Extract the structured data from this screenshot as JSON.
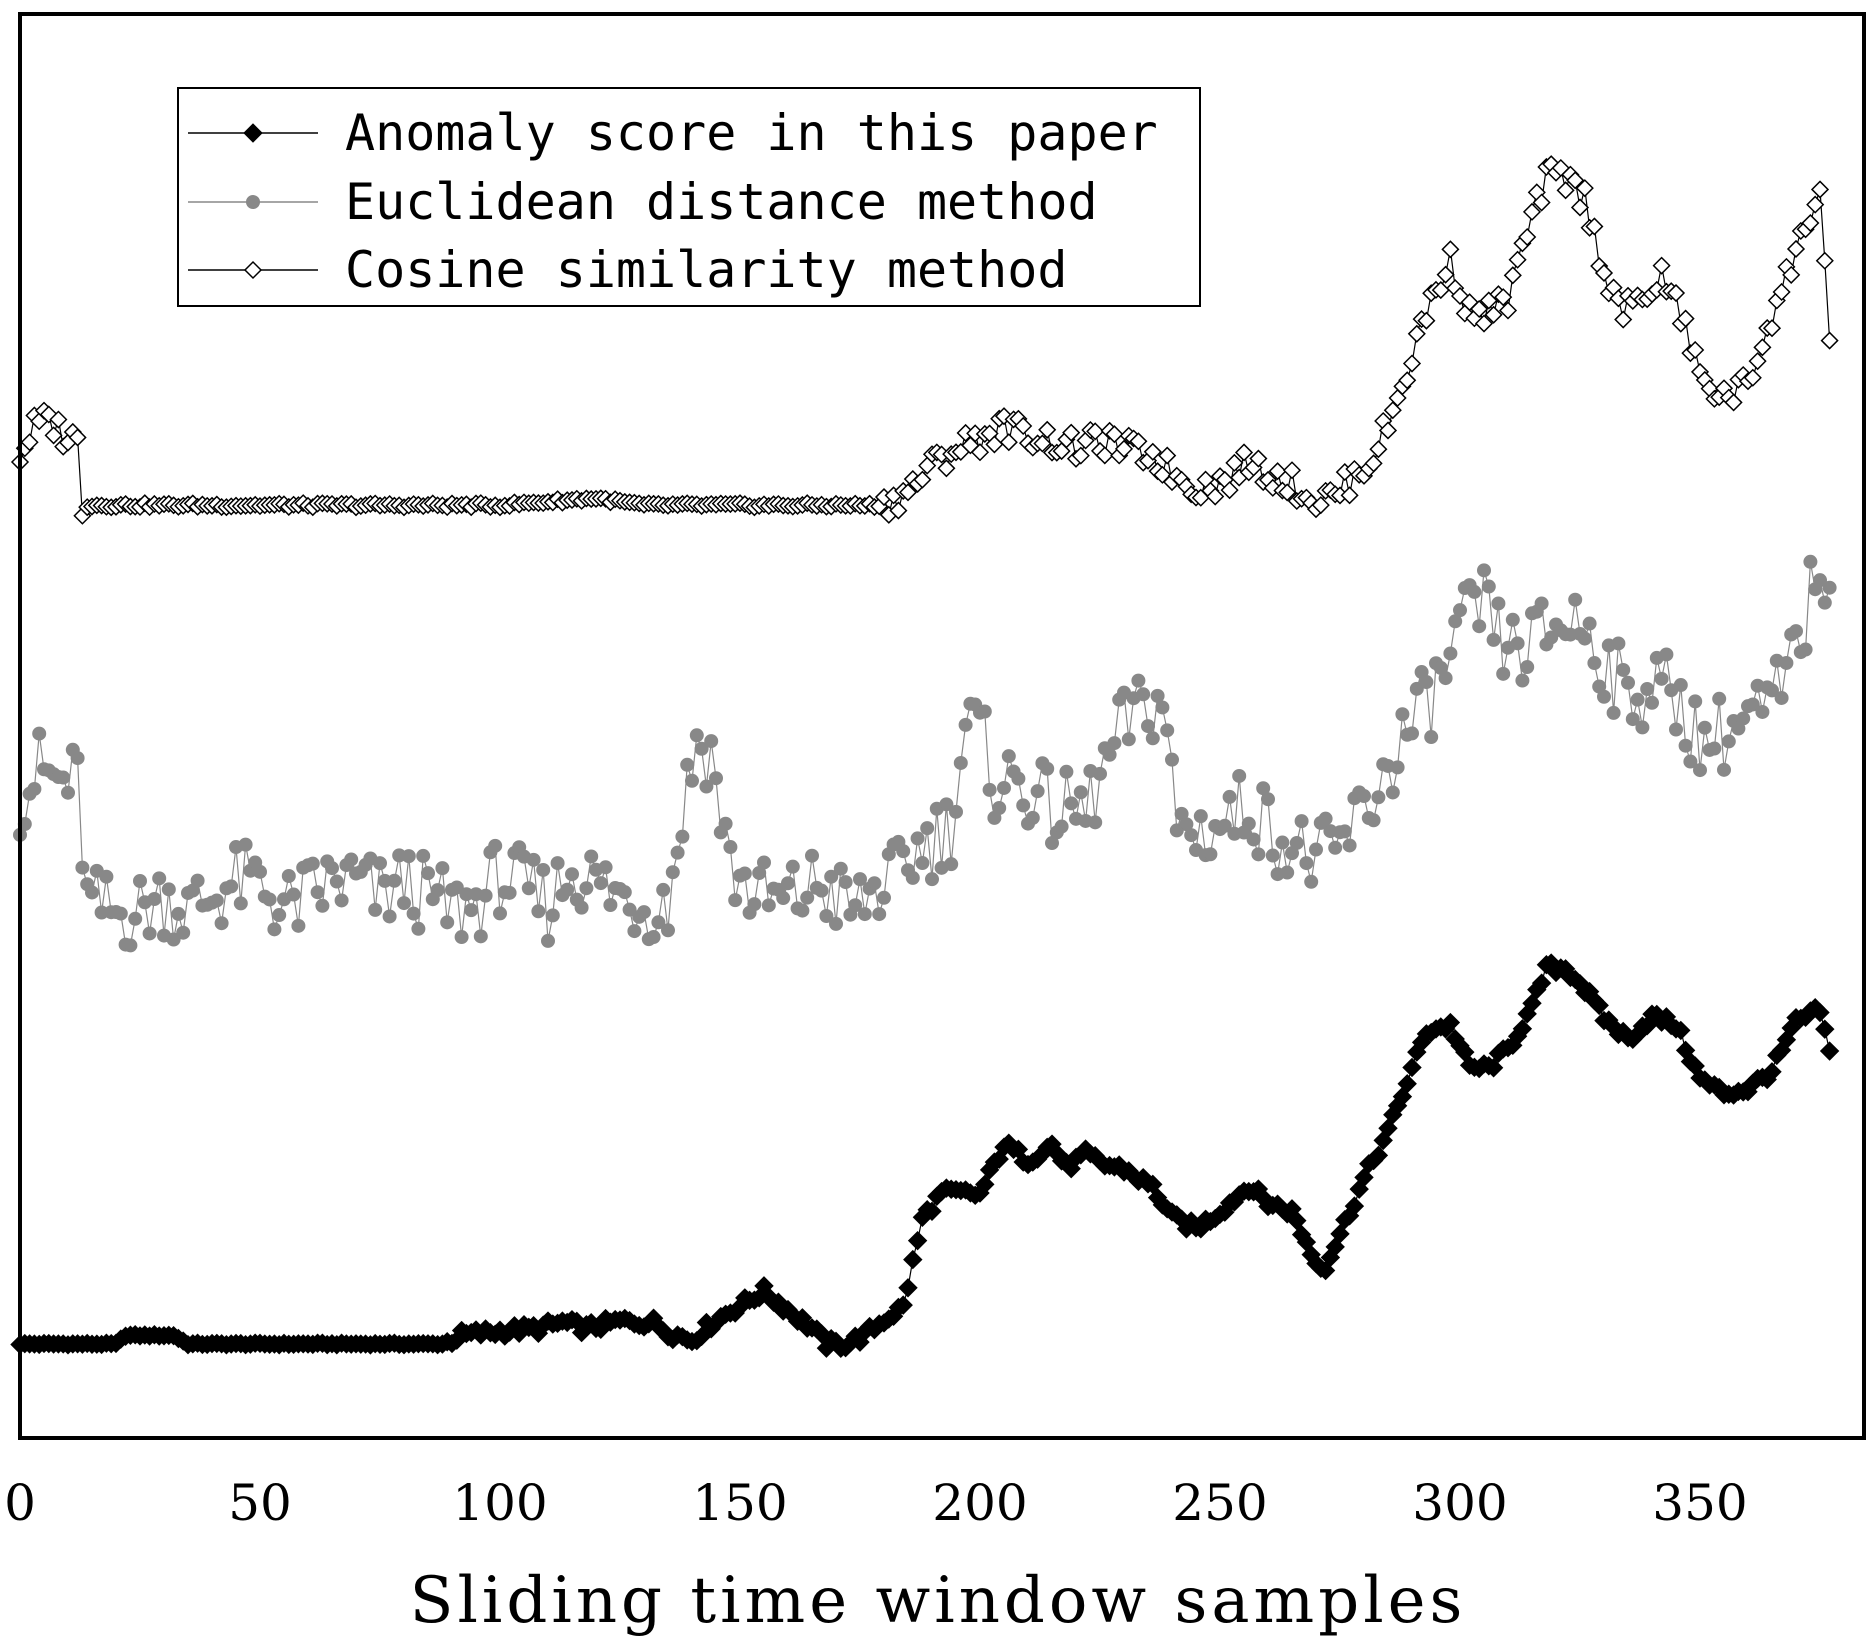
{
  "chart_data": {
    "type": "line",
    "title": "",
    "xlabel": "Sliding time window samples",
    "ylabel": "",
    "xlim": [
      0,
      380
    ],
    "ylim": [
      0,
      1
    ],
    "x_ticks": [
      0,
      50,
      100,
      150,
      200,
      250,
      300,
      350
    ],
    "y_ticks_shown": false,
    "grid": false,
    "legend_position": "top-left",
    "colors": {
      "frame": "#000000",
      "anomaly": "#000000",
      "euclidean": "#888888",
      "cosine": "#000000",
      "background": "#ffffff"
    },
    "series": [
      {
        "name": "Anomaly score in this paper",
        "marker": "filled-diamond",
        "knots": [
          [
            0,
            0.066
          ],
          [
            20,
            0.066
          ],
          [
            22,
            0.072
          ],
          [
            32,
            0.072
          ],
          [
            35,
            0.066
          ],
          [
            88,
            0.066
          ],
          [
            92,
            0.072
          ],
          [
            100,
            0.075
          ],
          [
            108,
            0.077
          ],
          [
            113,
            0.081
          ],
          [
            118,
            0.077
          ],
          [
            125,
            0.082
          ],
          [
            132,
            0.081
          ],
          [
            136,
            0.073
          ],
          [
            140,
            0.069
          ],
          [
            145,
            0.083
          ],
          [
            150,
            0.093
          ],
          [
            155,
            0.103
          ],
          [
            160,
            0.09
          ],
          [
            165,
            0.077
          ],
          [
            168,
            0.066
          ],
          [
            172,
            0.066
          ],
          [
            176,
            0.072
          ],
          [
            180,
            0.083
          ],
          [
            184,
            0.092
          ],
          [
            188,
            0.154
          ],
          [
            192,
            0.172
          ],
          [
            196,
            0.172
          ],
          [
            200,
            0.171
          ],
          [
            205,
            0.206
          ],
          [
            210,
            0.195
          ],
          [
            215,
            0.206
          ],
          [
            218,
            0.19
          ],
          [
            222,
            0.199
          ],
          [
            226,
            0.192
          ],
          [
            230,
            0.189
          ],
          [
            236,
            0.176
          ],
          [
            240,
            0.155
          ],
          [
            245,
            0.147
          ],
          [
            250,
            0.159
          ],
          [
            256,
            0.177
          ],
          [
            260,
            0.165
          ],
          [
            265,
            0.159
          ],
          [
            270,
            0.123
          ],
          [
            272,
            0.121
          ],
          [
            276,
            0.151
          ],
          [
            280,
            0.182
          ],
          [
            285,
            0.215
          ],
          [
            290,
            0.259
          ],
          [
            293,
            0.286
          ],
          [
            298,
            0.29
          ],
          [
            302,
            0.26
          ],
          [
            306,
            0.26
          ],
          [
            310,
            0.273
          ],
          [
            315,
            0.302
          ],
          [
            318,
            0.33
          ],
          [
            322,
            0.33
          ],
          [
            325,
            0.32
          ],
          [
            330,
            0.295
          ],
          [
            335,
            0.28
          ],
          [
            340,
            0.296
          ],
          [
            345,
            0.29
          ],
          [
            350,
            0.252
          ],
          [
            355,
            0.242
          ],
          [
            360,
            0.245
          ],
          [
            365,
            0.258
          ],
          [
            370,
            0.292
          ],
          [
            375,
            0.3
          ],
          [
            377,
            0.27
          ]
        ],
        "noise": 0.004
      },
      {
        "name": "Euclidean distance method",
        "marker": "filled-circle",
        "knots": [
          [
            0,
            0.45
          ],
          [
            4,
            0.47
          ],
          [
            8,
            0.46
          ],
          [
            12,
            0.46
          ],
          [
            14,
            0.375
          ],
          [
            20,
            0.368
          ],
          [
            25,
            0.37
          ],
          [
            30,
            0.38
          ],
          [
            35,
            0.37
          ],
          [
            40,
            0.38
          ],
          [
            45,
            0.39
          ],
          [
            50,
            0.39
          ],
          [
            55,
            0.37
          ],
          [
            60,
            0.38
          ],
          [
            65,
            0.39
          ],
          [
            70,
            0.39
          ],
          [
            75,
            0.38
          ],
          [
            80,
            0.39
          ],
          [
            85,
            0.38
          ],
          [
            90,
            0.37
          ],
          [
            95,
            0.375
          ],
          [
            100,
            0.395
          ],
          [
            105,
            0.385
          ],
          [
            110,
            0.375
          ],
          [
            115,
            0.4
          ],
          [
            120,
            0.39
          ],
          [
            125,
            0.38
          ],
          [
            130,
            0.375
          ],
          [
            135,
            0.375
          ],
          [
            138,
            0.44
          ],
          [
            141,
            0.49
          ],
          [
            144,
            0.48
          ],
          [
            148,
            0.4
          ],
          [
            152,
            0.385
          ],
          [
            158,
            0.375
          ],
          [
            162,
            0.38
          ],
          [
            166,
            0.39
          ],
          [
            170,
            0.38
          ],
          [
            174,
            0.37
          ],
          [
            178,
            0.385
          ],
          [
            182,
            0.39
          ],
          [
            186,
            0.41
          ],
          [
            190,
            0.42
          ],
          [
            194,
            0.43
          ],
          [
            197,
            0.5
          ],
          [
            200,
            0.495
          ],
          [
            203,
            0.46
          ],
          [
            208,
            0.46
          ],
          [
            212,
            0.45
          ],
          [
            215,
            0.44
          ],
          [
            218,
            0.44
          ],
          [
            222,
            0.44
          ],
          [
            226,
            0.47
          ],
          [
            230,
            0.5
          ],
          [
            234,
            0.51
          ],
          [
            238,
            0.52
          ],
          [
            241,
            0.43
          ],
          [
            245,
            0.425
          ],
          [
            250,
            0.43
          ],
          [
            256,
            0.445
          ],
          [
            260,
            0.43
          ],
          [
            265,
            0.415
          ],
          [
            270,
            0.405
          ],
          [
            274,
            0.41
          ],
          [
            278,
            0.43
          ],
          [
            282,
            0.45
          ],
          [
            288,
            0.49
          ],
          [
            292,
            0.51
          ],
          [
            296,
            0.53
          ],
          [
            300,
            0.566
          ],
          [
            305,
            0.585
          ],
          [
            308,
            0.56
          ],
          [
            312,
            0.55
          ],
          [
            316,
            0.56
          ],
          [
            320,
            0.57
          ],
          [
            324,
            0.575
          ],
          [
            327,
            0.565
          ],
          [
            331,
            0.54
          ],
          [
            335,
            0.52
          ],
          [
            340,
            0.53
          ],
          [
            345,
            0.52
          ],
          [
            350,
            0.49
          ],
          [
            355,
            0.495
          ],
          [
            360,
            0.505
          ],
          [
            364,
            0.51
          ],
          [
            368,
            0.53
          ],
          [
            372,
            0.575
          ],
          [
            375,
            0.625
          ],
          [
            377,
            0.57
          ]
        ],
        "noise": 0.028
      },
      {
        "name": "Cosine similarity method",
        "marker": "hollow-diamond",
        "knots": [
          [
            0,
            0.69
          ],
          [
            3,
            0.71
          ],
          [
            6,
            0.715
          ],
          [
            9,
            0.705
          ],
          [
            12,
            0.7
          ],
          [
            13,
            0.655
          ],
          [
            20,
            0.655
          ],
          [
            100,
            0.655
          ],
          [
            120,
            0.66
          ],
          [
            130,
            0.655
          ],
          [
            160,
            0.655
          ],
          [
            180,
            0.655
          ],
          [
            185,
            0.665
          ],
          [
            190,
            0.683
          ],
          [
            195,
            0.695
          ],
          [
            200,
            0.702
          ],
          [
            205,
            0.71
          ],
          [
            210,
            0.705
          ],
          [
            215,
            0.7
          ],
          [
            220,
            0.695
          ],
          [
            225,
            0.7
          ],
          [
            230,
            0.695
          ],
          [
            236,
            0.69
          ],
          [
            240,
            0.678
          ],
          [
            245,
            0.668
          ],
          [
            250,
            0.67
          ],
          [
            256,
            0.685
          ],
          [
            260,
            0.678
          ],
          [
            265,
            0.67
          ],
          [
            270,
            0.658
          ],
          [
            274,
            0.662
          ],
          [
            278,
            0.675
          ],
          [
            282,
            0.69
          ],
          [
            286,
            0.72
          ],
          [
            290,
            0.76
          ],
          [
            294,
            0.8
          ],
          [
            298,
            0.826
          ],
          [
            302,
            0.79
          ],
          [
            306,
            0.79
          ],
          [
            310,
            0.8
          ],
          [
            314,
            0.845
          ],
          [
            318,
            0.885
          ],
          [
            322,
            0.885
          ],
          [
            326,
            0.87
          ],
          [
            330,
            0.82
          ],
          [
            334,
            0.79
          ],
          [
            338,
            0.8
          ],
          [
            342,
            0.815
          ],
          [
            346,
            0.79
          ],
          [
            350,
            0.745
          ],
          [
            355,
            0.73
          ],
          [
            360,
            0.74
          ],
          [
            364,
            0.78
          ],
          [
            368,
            0.815
          ],
          [
            372,
            0.85
          ],
          [
            375,
            0.88
          ],
          [
            377,
            0.77
          ]
        ],
        "noise": 0.01
      }
    ]
  }
}
